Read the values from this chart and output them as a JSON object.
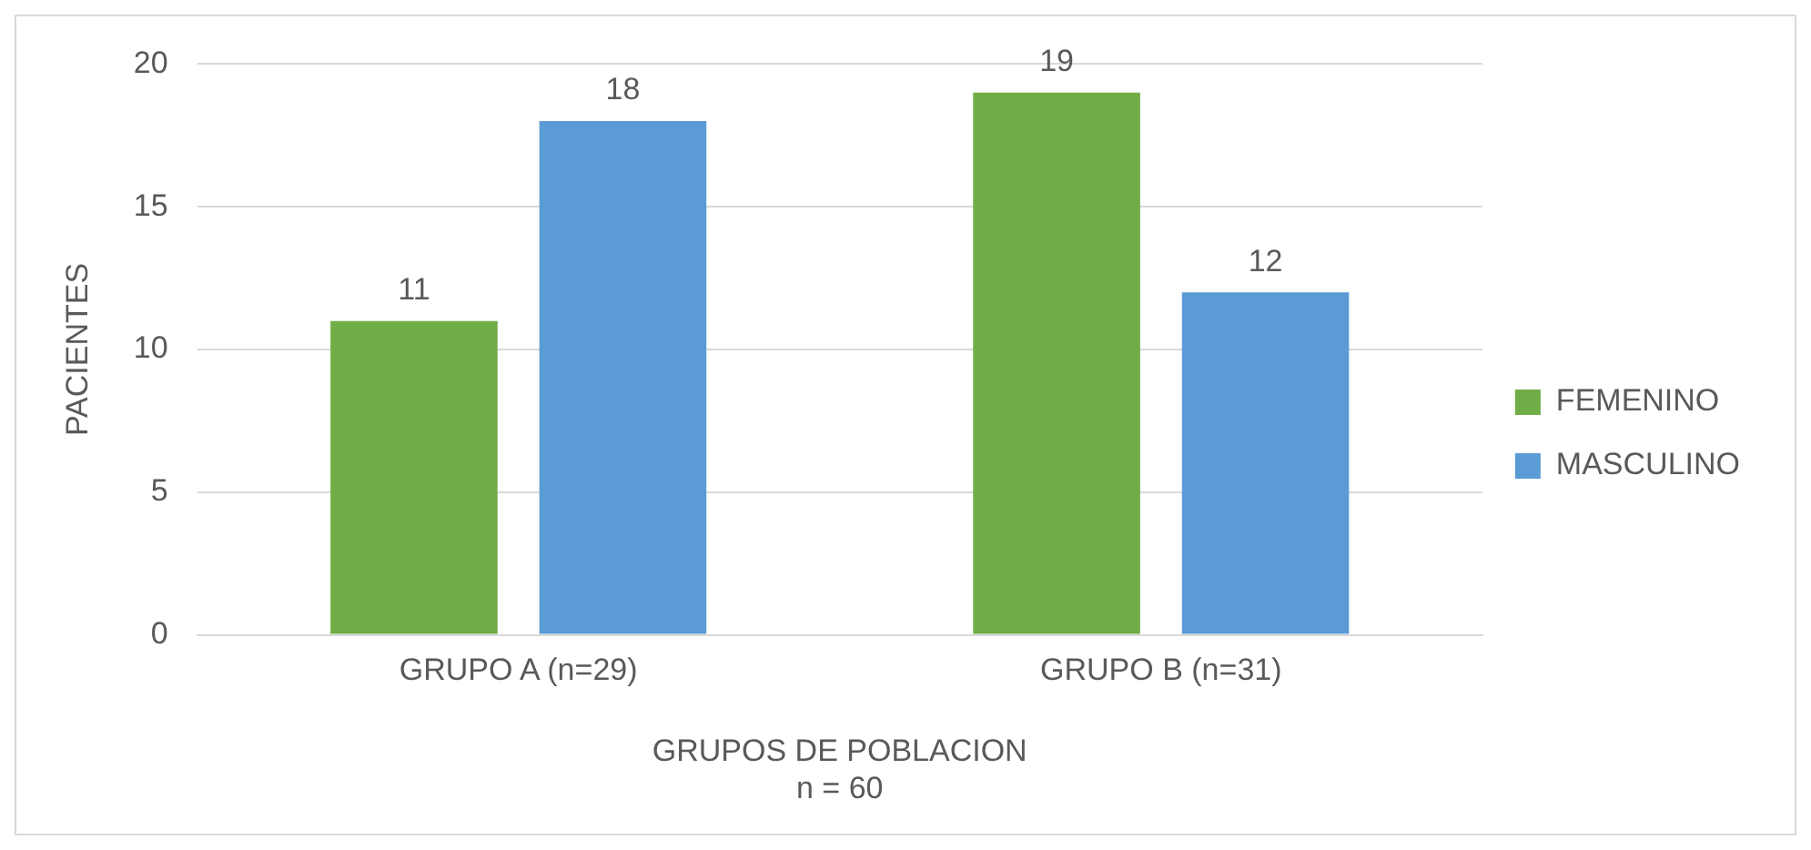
{
  "chart_data": {
    "type": "bar",
    "xlabel": "GRUPOS DE POBLACION",
    "annotations": [
      "n = 60"
    ],
    "ylabel": "PACIENTES",
    "categories": [
      "GRUPO A (n=29)",
      "GRUPO B (n=31)"
    ],
    "series": [
      {
        "name": "FEMENINO",
        "color": "#70ad47",
        "values": [
          11,
          19
        ]
      },
      {
        "name": "MASCULINO",
        "color": "#5b9bd5",
        "values": [
          18,
          12
        ]
      }
    ],
    "ylim": [
      0,
      20
    ],
    "yticks": [
      0,
      5,
      10,
      15,
      20
    ],
    "grid": "y",
    "legend": "right",
    "data_labels": true
  }
}
